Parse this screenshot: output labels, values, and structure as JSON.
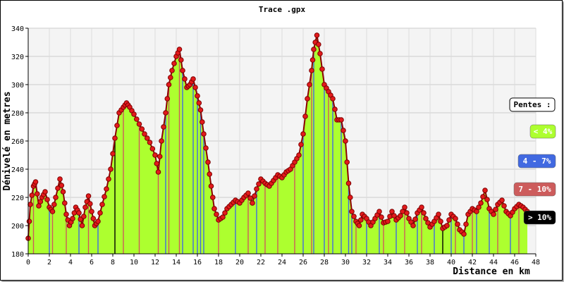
{
  "chart_data": {
    "type": "area",
    "title": "Trace .gpx",
    "xlabel": "Distance en km",
    "ylabel": "Dénivelé en metres",
    "xlim": [
      0,
      48
    ],
    "ylim": [
      180,
      340
    ],
    "xticks": [
      0,
      2,
      4,
      6,
      8,
      10,
      12,
      14,
      16,
      18,
      20,
      22,
      24,
      26,
      28,
      30,
      32,
      34,
      36,
      38,
      40,
      42,
      44,
      46,
      48
    ],
    "yticks": [
      180,
      200,
      220,
      240,
      260,
      280,
      300,
      320,
      340
    ],
    "grid": true,
    "legend": {
      "title": "Pentes :",
      "placement": "right",
      "items": [
        {
          "label": "< 4%",
          "color": "#adff2f",
          "text_color": "#ffffff"
        },
        {
          "label": "4 - 7%",
          "color": "#4169e1",
          "text_color": "#ffffff"
        },
        {
          "label": "7 - 10%",
          "color": "#cd5c5c",
          "text_color": "#ffffff"
        },
        {
          "label": "> 10%",
          "color": "#000000",
          "text_color": "#ffffff"
        }
      ]
    },
    "colors": {
      "fill": "#adff2f",
      "marker": "#e31a1c",
      "marker_edge": "#7a0000",
      "slope_4_7": "#4169e1",
      "slope_7_10": "#cd5c5c",
      "slope_gt10": "#000000"
    },
    "x": [
      0,
      0.2,
      0.5,
      0.7,
      1.0,
      1.3,
      1.6,
      2.0,
      2.3,
      2.6,
      3.0,
      3.3,
      3.6,
      3.9,
      4.2,
      4.5,
      4.8,
      5.1,
      5.4,
      5.7,
      6.0,
      6.3,
      6.6,
      7.0,
      7.4,
      7.8,
      8.2,
      8.6,
      9.0,
      9.3,
      9.6,
      10.0,
      10.5,
      11.0,
      11.5,
      12.0,
      12.3,
      12.6,
      13.0,
      13.3,
      13.6,
      14.0,
      14.3,
      14.6,
      15.0,
      15.3,
      15.6,
      16.0,
      16.3,
      16.6,
      17.0,
      17.3,
      17.6,
      18.0,
      18.4,
      18.8,
      19.2,
      19.6,
      20.0,
      20.4,
      20.8,
      21.2,
      21.6,
      22.0,
      22.4,
      22.8,
      23.2,
      23.6,
      24.0,
      24.4,
      24.8,
      25.2,
      25.6,
      26.0,
      26.4,
      26.8,
      27.0,
      27.3,
      27.6,
      28.0,
      28.4,
      28.8,
      29.2,
      29.6,
      30.0,
      30.3,
      30.6,
      31.0,
      31.3,
      31.6,
      32.0,
      32.4,
      32.8,
      33.2,
      33.6,
      34.0,
      34.4,
      34.8,
      35.2,
      35.6,
      36.0,
      36.4,
      36.8,
      37.2,
      37.6,
      38.0,
      38.4,
      38.8,
      39.2,
      39.6,
      40.0,
      40.4,
      40.8,
      41.2,
      41.6,
      42.0,
      42.4,
      42.8,
      43.2,
      43.6,
      44.0,
      44.4,
      44.8,
      45.2,
      45.6,
      46.0,
      46.4,
      46.8,
      47.2
    ],
    "y": [
      191,
      215,
      228,
      231,
      214,
      220,
      224,
      213,
      210,
      220,
      233,
      224,
      208,
      200,
      205,
      213,
      209,
      200,
      213,
      221,
      210,
      200,
      203,
      215,
      226,
      240,
      262,
      280,
      284,
      287,
      284,
      279,
      272,
      265,
      259,
      250,
      238,
      260,
      280,
      300,
      310,
      320,
      325,
      310,
      298,
      300,
      304,
      292,
      282,
      265,
      245,
      228,
      212,
      204,
      206,
      212,
      215,
      218,
      216,
      220,
      223,
      216,
      226,
      233,
      230,
      228,
      232,
      236,
      234,
      238,
      240,
      245,
      250,
      265,
      290,
      310,
      325,
      335,
      322,
      300,
      295,
      290,
      275,
      275,
      260,
      230,
      210,
      203,
      200,
      208,
      205,
      200,
      205,
      210,
      202,
      203,
      210,
      204,
      207,
      213,
      205,
      200,
      209,
      213,
      205,
      199,
      203,
      208,
      198,
      200,
      208,
      205,
      197,
      194,
      208,
      212,
      210,
      216,
      225,
      212,
      208,
      215,
      218,
      210,
      207,
      212,
      215,
      213,
      210
    ],
    "slope_class": [
      0,
      0,
      2,
      0,
      0,
      0,
      0,
      1,
      2,
      0,
      0,
      0,
      2,
      0,
      0,
      0,
      1,
      0,
      0,
      2,
      0,
      0,
      1,
      0,
      0,
      0,
      3,
      0,
      2,
      0,
      0,
      0,
      2,
      0,
      0,
      0,
      2,
      0,
      1,
      2,
      0,
      0,
      2,
      1,
      0,
      0,
      1,
      1,
      1,
      1,
      0,
      0,
      0,
      2,
      0,
      0,
      0,
      1,
      0,
      0,
      2,
      0,
      1,
      0,
      2,
      0,
      0,
      2,
      0,
      0,
      0,
      2,
      0,
      1,
      0,
      2,
      1,
      0,
      0,
      1,
      2,
      1,
      0,
      1,
      0,
      1,
      1,
      2,
      0,
      0,
      1,
      0,
      0,
      1,
      2,
      0,
      0,
      1,
      0,
      2,
      0,
      0,
      1,
      2,
      0,
      0,
      1,
      0,
      3,
      0,
      1,
      2,
      0,
      1,
      0,
      2,
      1,
      0,
      0,
      1,
      0,
      2,
      0,
      0,
      1,
      0,
      2,
      0,
      0
    ]
  }
}
